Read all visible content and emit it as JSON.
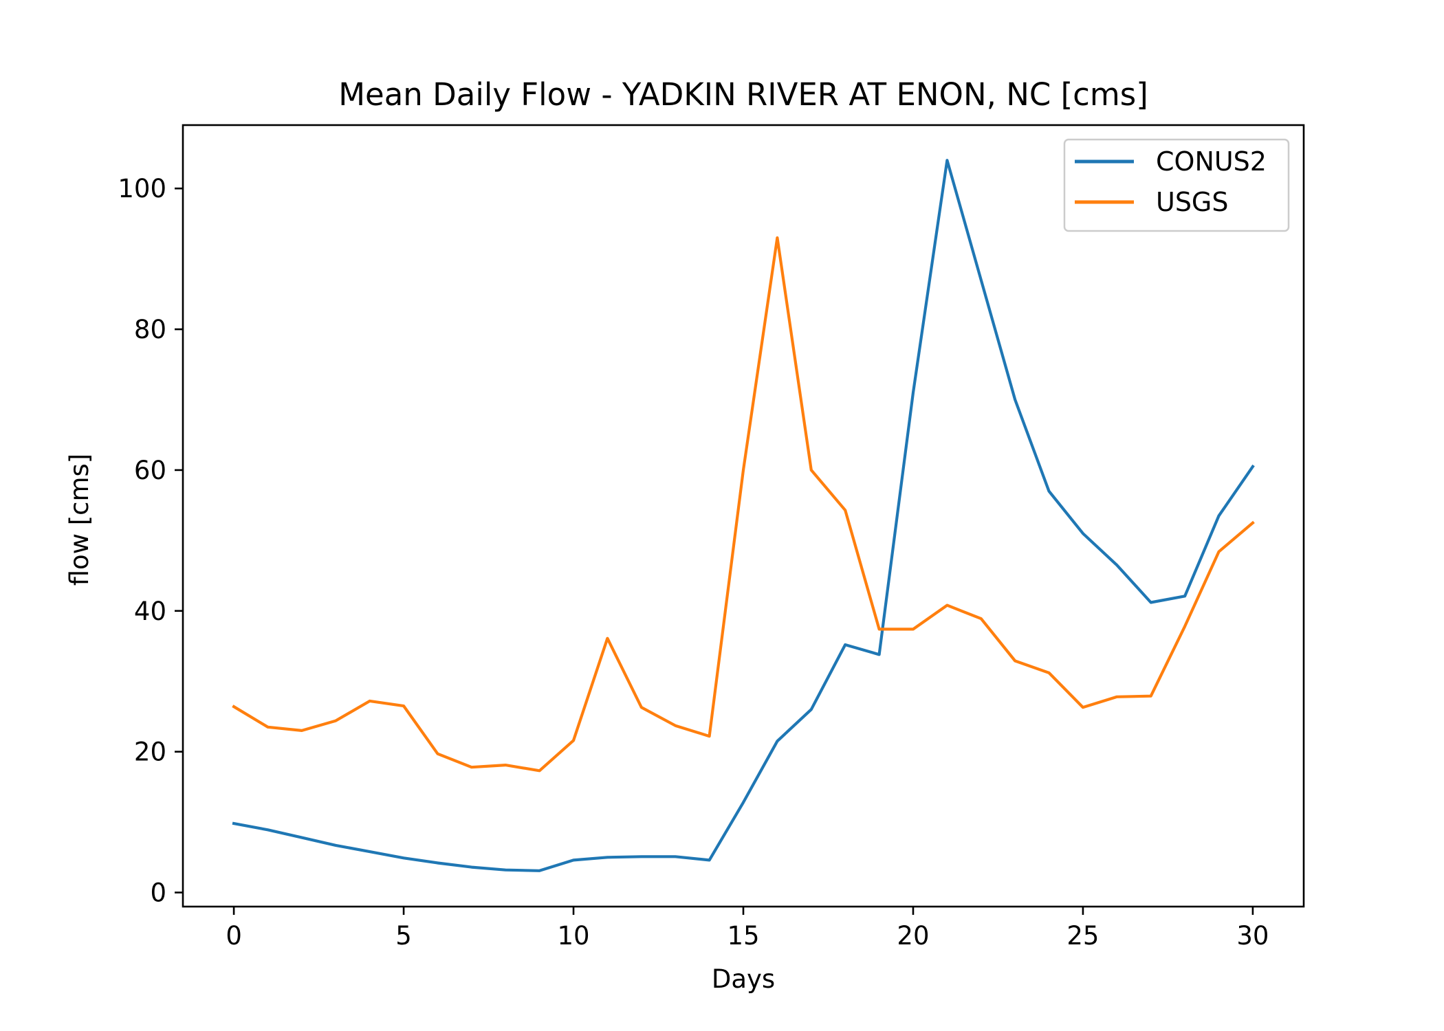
{
  "chart_data": {
    "type": "line",
    "title": "Mean Daily Flow - YADKIN RIVER AT ENON, NC [cms]",
    "xlabel": "Days",
    "ylabel": "flow [cms]",
    "xlim": [
      -1.5,
      31.5
    ],
    "ylim": [
      -2,
      109
    ],
    "xticks": [
      0,
      5,
      10,
      15,
      20,
      25,
      30
    ],
    "yticks": [
      0,
      20,
      40,
      60,
      80,
      100
    ],
    "grid": false,
    "legend_position": "top-right",
    "x": [
      0,
      1,
      2,
      3,
      4,
      5,
      6,
      7,
      8,
      9,
      10,
      11,
      12,
      13,
      14,
      15,
      16,
      17,
      18,
      19,
      20,
      21,
      22,
      23,
      24,
      25,
      26,
      27,
      28,
      29,
      30
    ],
    "series": [
      {
        "name": "CONUS2",
        "color": "#1f77b4",
        "values": [
          9.8,
          8.9,
          7.8,
          6.7,
          5.8,
          4.9,
          4.2,
          3.6,
          3.2,
          3.1,
          4.6,
          5.0,
          5.1,
          5.1,
          4.6,
          12.8,
          21.5,
          26.0,
          35.2,
          33.8,
          71.0,
          104.0,
          87.0,
          70.0,
          57.0,
          51.0,
          46.5,
          41.2,
          42.1,
          53.5,
          60.5
        ]
      },
      {
        "name": "USGS",
        "color": "#ff7f0e",
        "values": [
          26.4,
          23.5,
          23.0,
          24.4,
          27.2,
          26.5,
          19.7,
          17.8,
          18.1,
          17.3,
          21.6,
          36.1,
          26.3,
          23.7,
          22.2,
          60.0,
          93.0,
          60.0,
          54.3,
          37.4,
          37.4,
          40.8,
          38.9,
          32.9,
          31.2,
          26.3,
          27.8,
          27.9,
          37.8,
          48.4,
          52.5
        ]
      }
    ]
  }
}
